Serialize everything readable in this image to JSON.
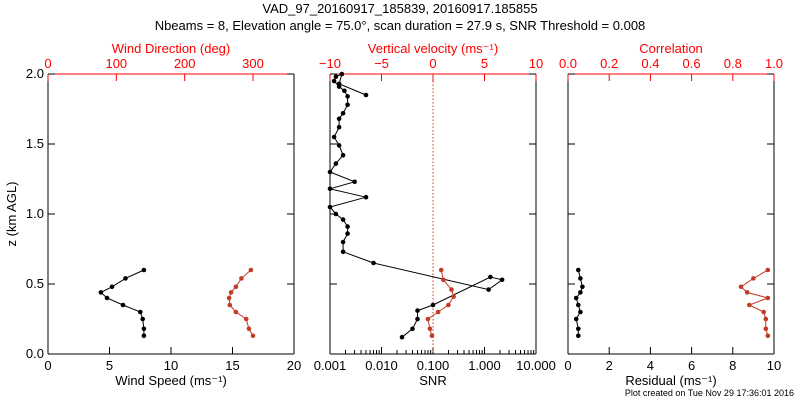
{
  "title_line1": "VAD_97_20160917_185839, 20160917.185855",
  "title_line2": "Nbeams = 8, Elevation angle = 75.0°, scan duration = 27.9 s, SNR Threshold = 0.008",
  "footer": "Plot created on Tue Nov 29 17:36:01 2016",
  "colors": {
    "black": "#000000",
    "red": "#c03c24",
    "accent_axis": "#ff0000"
  },
  "chart_data": [
    {
      "type": "line",
      "panel": "wind",
      "ylabel": "z (km AGL)",
      "yaxis": {
        "range": [
          0,
          2.0
        ],
        "ticks": [
          0.0,
          0.5,
          1.0,
          1.5,
          2.0
        ],
        "tick_labels": [
          "0.0",
          "0.5",
          "1.0",
          "1.5",
          "2.0"
        ]
      },
      "xaxis_bottom": {
        "label": "Wind Speed (ms⁻¹)",
        "range": [
          0,
          20
        ],
        "ticks": [
          0,
          5,
          10,
          15,
          20
        ],
        "tick_labels": [
          "0",
          "5",
          "10",
          "15",
          "20"
        ]
      },
      "xaxis_top": {
        "label": "Wind Direction (deg)",
        "range": [
          0,
          360
        ],
        "ticks": [
          0,
          100,
          200,
          300
        ],
        "tick_labels": [
          "0",
          "100",
          "200",
          "300"
        ]
      },
      "series": [
        {
          "axis": "bottom",
          "color": "black",
          "x": [
            7.8,
            7.8,
            7.7,
            7.5,
            6.1,
            4.8,
            4.3,
            5.2,
            6.3,
            7.8
          ],
          "y": [
            0.13,
            0.18,
            0.25,
            0.3,
            0.35,
            0.4,
            0.44,
            0.48,
            0.54,
            0.6
          ]
        },
        {
          "axis": "top",
          "color": "red",
          "x": [
            300,
            294,
            290,
            275,
            266,
            265,
            268,
            275,
            283,
            297
          ],
          "y": [
            0.13,
            0.18,
            0.25,
            0.3,
            0.35,
            0.4,
            0.44,
            0.48,
            0.54,
            0.6
          ]
        }
      ]
    },
    {
      "type": "line",
      "panel": "snr",
      "xscale": "log",
      "xaxis_bottom": {
        "label": "SNR",
        "range": [
          0.001,
          10
        ],
        "ticks": [
          0.001,
          0.01,
          0.1,
          1,
          10
        ],
        "tick_labels": [
          "0.001",
          "0.010",
          "0.100",
          "1.000",
          "10.000"
        ]
      },
      "xaxis_top": {
        "label": "Vertical velocity (ms⁻¹)",
        "range": [
          -10,
          10
        ],
        "ticks": [
          -10,
          -5,
          0,
          5,
          10
        ],
        "tick_labels": [
          "−10",
          "−5",
          "0",
          "5",
          "10"
        ]
      },
      "reference_line": {
        "axis": "top",
        "value": 0,
        "color": "red",
        "style": "dotted"
      },
      "series": [
        {
          "axis": "bottom",
          "color": "black",
          "x": [
            0.025,
            0.04,
            0.05,
            0.05,
            0.1,
            1.3,
            2.2,
            1.2,
            0.007,
            0.0018,
            0.0018,
            0.0022,
            0.0022,
            0.0018,
            0.0013,
            0.001,
            0.005,
            0.001,
            0.003,
            0.001,
            0.0013,
            0.0018,
            0.0015,
            0.0012,
            0.0015,
            0.0015,
            0.0018,
            0.0022,
            0.0022,
            0.0019,
            0.0015,
            0.0012,
            0.0013,
            0.0017,
            0.0015,
            0.005
          ],
          "y": [
            0.12,
            0.18,
            0.25,
            0.31,
            0.35,
            0.55,
            0.53,
            0.46,
            0.65,
            0.73,
            0.8,
            0.86,
            0.91,
            0.96,
            1.0,
            1.05,
            1.12,
            1.18,
            1.23,
            1.3,
            1.36,
            1.42,
            1.49,
            1.55,
            1.62,
            1.68,
            1.72,
            1.78,
            1.84,
            1.88,
            1.91,
            1.95,
            1.98,
            2.0,
            1.93,
            1.85
          ]
        },
        {
          "axis": "top",
          "color": "red",
          "x": [
            -0.1,
            -0.3,
            -0.5,
            0.5,
            1.5,
            2.0,
            1.8,
            1.0,
            0.8
          ],
          "y": [
            0.13,
            0.18,
            0.25,
            0.3,
            0.35,
            0.41,
            0.46,
            0.53,
            0.6
          ]
        }
      ]
    },
    {
      "type": "line",
      "panel": "residual",
      "xaxis_bottom": {
        "label": "Residual (ms⁻¹)",
        "range": [
          0,
          10
        ],
        "ticks": [
          0,
          2,
          4,
          6,
          8,
          10
        ],
        "tick_labels": [
          "0",
          "2",
          "4",
          "6",
          "8",
          "10"
        ]
      },
      "xaxis_top": {
        "label": "Correlation",
        "range": [
          0,
          1
        ],
        "ticks": [
          0,
          0.2,
          0.4,
          0.6,
          0.8,
          1.0
        ],
        "tick_labels": [
          "0.0",
          "0.2",
          "0.4",
          "0.6",
          "0.8",
          "1.0"
        ]
      },
      "series": [
        {
          "axis": "bottom",
          "color": "black",
          "x": [
            0.5,
            0.5,
            0.4,
            0.6,
            0.5,
            0.4,
            0.6,
            0.7,
            0.6,
            0.5
          ],
          "y": [
            0.13,
            0.18,
            0.25,
            0.3,
            0.35,
            0.4,
            0.44,
            0.48,
            0.54,
            0.6
          ]
        },
        {
          "axis": "top",
          "color": "red",
          "x": [
            0.97,
            0.96,
            0.96,
            0.95,
            0.88,
            0.97,
            0.87,
            0.84,
            0.9,
            0.97
          ],
          "y": [
            0.13,
            0.18,
            0.25,
            0.3,
            0.35,
            0.4,
            0.44,
            0.48,
            0.54,
            0.6
          ]
        }
      ]
    }
  ]
}
